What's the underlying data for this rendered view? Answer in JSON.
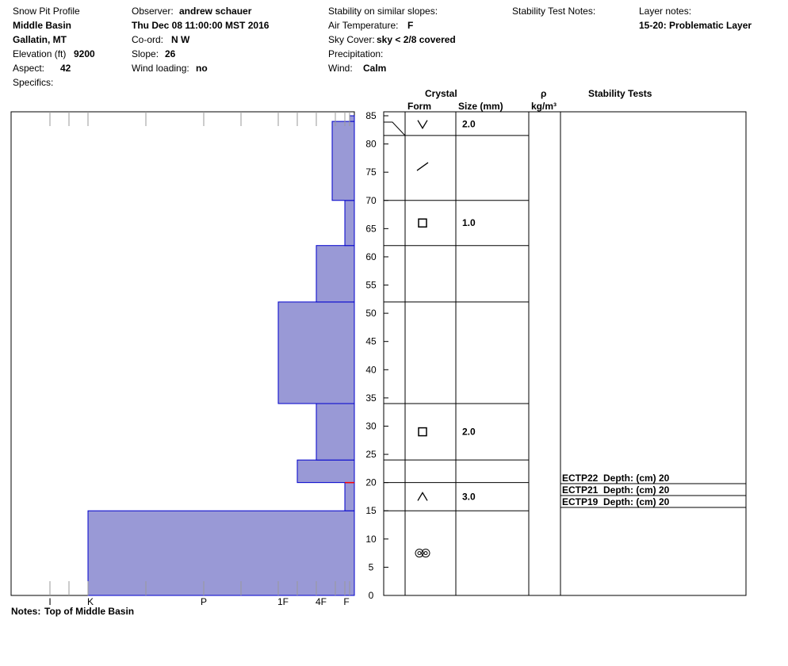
{
  "header": {
    "col1": {
      "title": "Snow Pit Profile",
      "location": "Middle Basin",
      "region": "Gallatin, MT",
      "elevation_label": "Elevation (ft)",
      "elevation_value": "9200",
      "aspect_label": "Aspect:",
      "aspect_value": "42",
      "specifics_label": "Specifics:"
    },
    "col2": {
      "observer_label": "Observer:",
      "observer_value": "andrew schauer",
      "datetime": "Thu Dec 08 11:00:00 MST 2016",
      "coord_label": "Co-ord:",
      "coord_value": "N  W",
      "slope_label": "Slope:",
      "slope_value": "26",
      "wind_loading_label": "Wind loading:",
      "wind_loading_value": "no"
    },
    "col3": {
      "stability_label": "Stability on similar slopes:",
      "air_temp_label": "Air Temperature:",
      "air_temp_value": "F",
      "sky_label": "Sky Cover:",
      "sky_value": "sky < 2/8 covered",
      "precip_label": "Precipitation:",
      "wind_label": "Wind:",
      "wind_value": "Calm"
    },
    "col4": {
      "stability_notes_label": "Stability Test Notes:"
    },
    "col5": {
      "layer_notes_label": "Layer notes:",
      "layer_notes_value": "15-20: Problematic Layer"
    }
  },
  "table_headers": {
    "crystal": "Crystal",
    "form": "Form",
    "size": "Size (mm)",
    "rho": "ρ",
    "density_unit": "kg/m³",
    "stability_tests": "Stability Tests"
  },
  "notes": {
    "label": "Notes:",
    "value": "Top of Middle Basin"
  },
  "chart_data": {
    "type": "bar",
    "orientation": "horizontal",
    "description_axis": "depth",
    "y_range": [
      0,
      86
    ],
    "y_ticks": [
      0,
      5,
      10,
      15,
      20,
      25,
      30,
      35,
      40,
      45,
      50,
      55,
      60,
      65,
      70,
      75,
      80,
      85
    ],
    "hardness_scale": [
      "I",
      "K",
      "P",
      "1F",
      "4F",
      "F"
    ],
    "hardness_layers": [
      {
        "from": 0,
        "to": 15,
        "hardness": "K"
      },
      {
        "from": 15,
        "to": 20,
        "hardness": "F+"
      },
      {
        "from": 20,
        "to": 24,
        "hardness": "4F-"
      },
      {
        "from": 24,
        "to": 34,
        "hardness": "4F"
      },
      {
        "from": 34,
        "to": 52,
        "hardness": "1F"
      },
      {
        "from": 52,
        "to": 62,
        "hardness": "4F"
      },
      {
        "from": 62,
        "to": 70,
        "hardness": "F+"
      },
      {
        "from": 70,
        "to": 84,
        "hardness": "F-"
      },
      {
        "from": 84,
        "to": 85,
        "hardness": "F"
      }
    ],
    "layer_boundaries": [
      15,
      20,
      24,
      34,
      52,
      62,
      70,
      81.5
    ],
    "crystal_layers": [
      {
        "mid": 83.5,
        "form": "v-icon",
        "size": "2.0"
      },
      {
        "mid": 76.0,
        "form": "slash-icon",
        "size": ""
      },
      {
        "mid": 66.0,
        "form": "square-icon",
        "size": "1.0"
      },
      {
        "mid": 29.0,
        "form": "square-icon",
        "size": "2.0"
      },
      {
        "mid": 17.5,
        "form": "caret-icon",
        "size": "3.0"
      },
      {
        "mid": 7.5,
        "form": "double-circle-icon",
        "size": ""
      }
    ],
    "stability_tests": [
      {
        "label": "ECTP22",
        "depth_label": "Depth: (cm) 20"
      },
      {
        "label": "ECTP21",
        "depth_label": "Depth: (cm) 20"
      },
      {
        "label": "ECTP19",
        "depth_label": "Depth: (cm) 20"
      }
    ],
    "colors": {
      "fill": "#9999d6",
      "outline": "#0000cc",
      "marker": "#ff0000"
    }
  }
}
